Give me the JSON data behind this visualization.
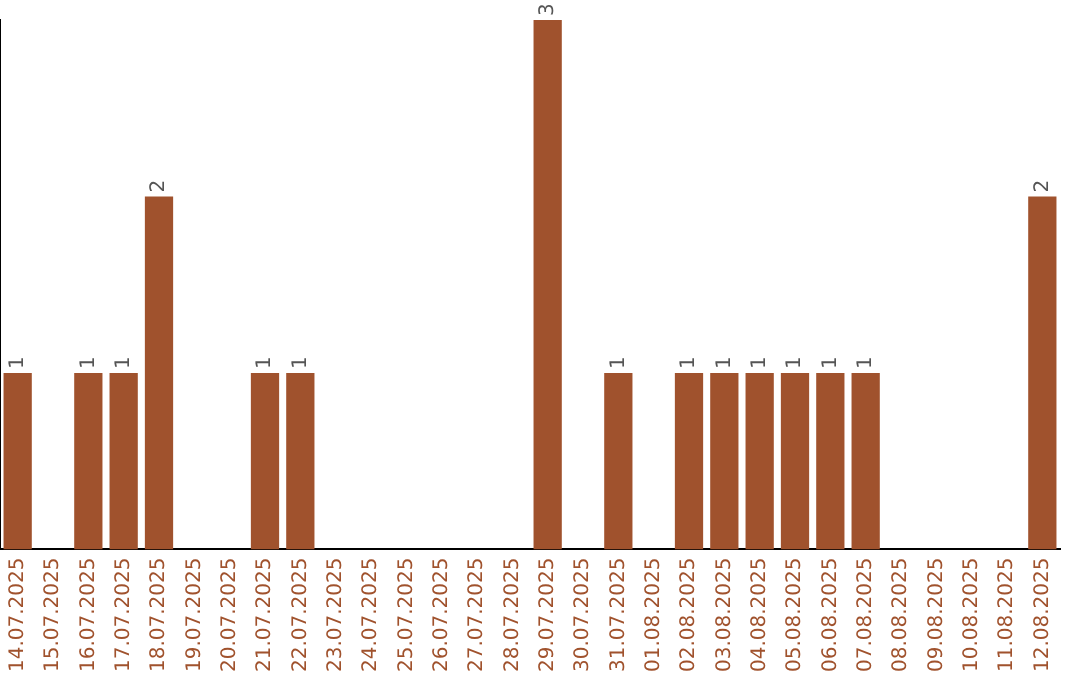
{
  "chart_data": {
    "type": "bar",
    "categories": [
      "14.07.2025",
      "15.07.2025",
      "16.07.2025",
      "17.07.2025",
      "18.07.2025",
      "19.07.2025",
      "20.07.2025",
      "21.07.2025",
      "22.07.2025",
      "23.07.2025",
      "24.07.2025",
      "25.07.2025",
      "26.07.2025",
      "27.07.2025",
      "28.07.2025",
      "29.07.2025",
      "30.07.2025",
      "31.07.2025",
      "01.08.2025",
      "02.08.2025",
      "03.08.2025",
      "04.08.2025",
      "05.08.2025",
      "06.08.2025",
      "07.08.2025",
      "08.08.2025",
      "09.08.2025",
      "10.08.2025",
      "11.08.2025",
      "12.08.2025"
    ],
    "values": [
      1,
      0,
      1,
      1,
      2,
      0,
      0,
      1,
      1,
      0,
      0,
      0,
      0,
      0,
      0,
      3,
      0,
      1,
      0,
      1,
      1,
      1,
      1,
      1,
      1,
      0,
      0,
      0,
      0,
      2
    ],
    "value_labels": [
      "1",
      null,
      "1",
      "1",
      "2",
      null,
      null,
      "1",
      "1",
      null,
      null,
      null,
      null,
      null,
      null,
      "3",
      null,
      "1",
      null,
      "1",
      "1",
      "1",
      "1",
      "1",
      "1",
      null,
      null,
      null,
      null,
      "2"
    ],
    "color": "#a0522d",
    "ylim": [
      0,
      3
    ],
    "grid": false,
    "legend": false,
    "tick_labels": "x"
  }
}
